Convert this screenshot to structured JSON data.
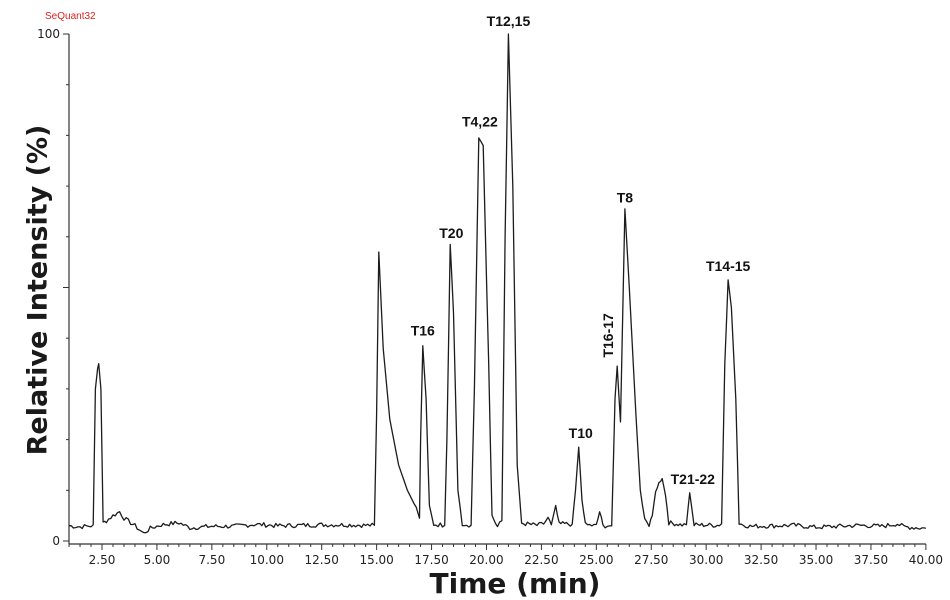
{
  "watermark": "SeQuant32",
  "chart_data": {
    "type": "line",
    "title": "",
    "xlabel": "Time (min)",
    "ylabel": "Relative Intensity (%)",
    "xlim": [
      1.0,
      40.0
    ],
    "ylim": [
      0,
      100
    ],
    "grid": false,
    "x_ticks": [
      "2.50",
      "5.00",
      "7.50",
      "10.00",
      "12.50",
      "15.00",
      "17.50",
      "20.00",
      "22.50",
      "25.00",
      "27.50",
      "30.00",
      "32.50",
      "35.00",
      "37.50",
      "40.00"
    ],
    "y_ticks": [
      "0",
      "100"
    ],
    "y_major_mid": 50,
    "peaks": [
      {
        "label": "",
        "time": 2.3,
        "intensity": 35
      },
      {
        "label": "",
        "time": 15.1,
        "intensity": 57
      },
      {
        "label": "T16",
        "time": 17.1,
        "intensity": 39
      },
      {
        "label": "T20",
        "time": 18.4,
        "intensity": 58
      },
      {
        "label": "T4,22",
        "time": 19.7,
        "intensity": 80
      },
      {
        "label": "T12,15",
        "time": 21.0,
        "intensity": 100
      },
      {
        "label": "T10",
        "time": 24.2,
        "intensity": 18.5
      },
      {
        "label": "T16-17",
        "time": 25.9,
        "intensity": 35
      },
      {
        "label": "T8",
        "time": 26.3,
        "intensity": 65
      },
      {
        "label": "T21-22",
        "time": 29.3,
        "intensity": 9.5
      },
      {
        "label": "T14-15",
        "time": 31.0,
        "intensity": 51.5
      }
    ],
    "series": [
      {
        "name": "chromatogram",
        "points": [
          [
            1.0,
            3.0
          ],
          [
            1.5,
            2.8
          ],
          [
            2.0,
            3.0
          ],
          [
            2.1,
            3.2
          ],
          [
            2.2,
            30
          ],
          [
            2.3,
            34
          ],
          [
            2.35,
            35
          ],
          [
            2.45,
            30
          ],
          [
            2.55,
            3.5
          ],
          [
            2.7,
            4.0
          ],
          [
            3.0,
            5.0
          ],
          [
            3.3,
            5.8
          ],
          [
            3.5,
            4.5
          ],
          [
            4.0,
            3.0
          ],
          [
            4.4,
            1.5
          ],
          [
            4.7,
            2.5
          ],
          [
            5.2,
            3.2
          ],
          [
            6.0,
            3.6
          ],
          [
            6.5,
            2.6
          ],
          [
            7.5,
            2.9
          ],
          [
            8.5,
            2.9
          ],
          [
            9.5,
            3.3
          ],
          [
            10.5,
            3.0
          ],
          [
            11.5,
            3.1
          ],
          [
            12.5,
            3.2
          ],
          [
            13.5,
            3.2
          ],
          [
            14.5,
            3.1
          ],
          [
            14.9,
            3.1
          ],
          [
            15.0,
            25
          ],
          [
            15.1,
            57
          ],
          [
            15.3,
            38
          ],
          [
            15.6,
            24
          ],
          [
            16.0,
            15
          ],
          [
            16.4,
            10
          ],
          [
            16.8,
            6.5
          ],
          [
            16.95,
            4.5
          ],
          [
            17.0,
            20
          ],
          [
            17.1,
            38.5
          ],
          [
            17.25,
            28
          ],
          [
            17.4,
            7
          ],
          [
            17.6,
            3.3
          ],
          [
            18.1,
            3.1
          ],
          [
            18.2,
            20
          ],
          [
            18.35,
            58.5
          ],
          [
            18.5,
            45
          ],
          [
            18.7,
            10
          ],
          [
            18.9,
            3.4
          ],
          [
            19.3,
            3.1
          ],
          [
            19.45,
            30
          ],
          [
            19.65,
            79.5
          ],
          [
            19.85,
            78
          ],
          [
            20.1,
            35
          ],
          [
            20.25,
            5
          ],
          [
            20.5,
            2.8
          ],
          [
            20.7,
            4
          ],
          [
            20.85,
            60
          ],
          [
            21.0,
            100
          ],
          [
            21.2,
            70
          ],
          [
            21.4,
            15
          ],
          [
            21.6,
            3.5
          ],
          [
            22.3,
            3.1
          ],
          [
            22.6,
            3.4
          ],
          [
            22.8,
            4.5
          ],
          [
            22.95,
            3.2
          ],
          [
            23.15,
            7
          ],
          [
            23.3,
            3.4
          ],
          [
            23.9,
            3.3
          ],
          [
            24.05,
            10
          ],
          [
            24.2,
            18.5
          ],
          [
            24.35,
            8
          ],
          [
            24.5,
            3.2
          ],
          [
            25.0,
            3.0
          ],
          [
            25.15,
            5.8
          ],
          [
            25.3,
            3.0
          ],
          [
            25.7,
            3.0
          ],
          [
            25.85,
            28
          ],
          [
            25.95,
            34.5
          ],
          [
            26.1,
            23.5
          ],
          [
            26.3,
            65.5
          ],
          [
            26.5,
            50
          ],
          [
            26.8,
            25
          ],
          [
            27.0,
            10
          ],
          [
            27.2,
            4
          ],
          [
            27.4,
            3.2
          ],
          [
            27.55,
            5
          ],
          [
            27.7,
            10
          ],
          [
            27.85,
            11.5
          ],
          [
            28.0,
            12.3
          ],
          [
            28.15,
            9
          ],
          [
            28.3,
            3.6
          ],
          [
            28.9,
            3.2
          ],
          [
            29.1,
            3.2
          ],
          [
            29.25,
            9.5
          ],
          [
            29.45,
            3.2
          ],
          [
            30.5,
            3.1
          ],
          [
            30.7,
            3.4
          ],
          [
            30.85,
            35
          ],
          [
            31.0,
            51.5
          ],
          [
            31.15,
            46
          ],
          [
            31.35,
            28
          ],
          [
            31.5,
            3.4
          ],
          [
            32.0,
            2.9
          ],
          [
            33.0,
            3.0
          ],
          [
            34.0,
            3.1
          ],
          [
            35.0,
            2.7
          ],
          [
            36.0,
            2.9
          ],
          [
            37.0,
            3.1
          ],
          [
            38.0,
            2.9
          ],
          [
            38.7,
            3.4
          ],
          [
            39.0,
            2.8
          ],
          [
            40.0,
            2.5
          ]
        ]
      }
    ]
  }
}
